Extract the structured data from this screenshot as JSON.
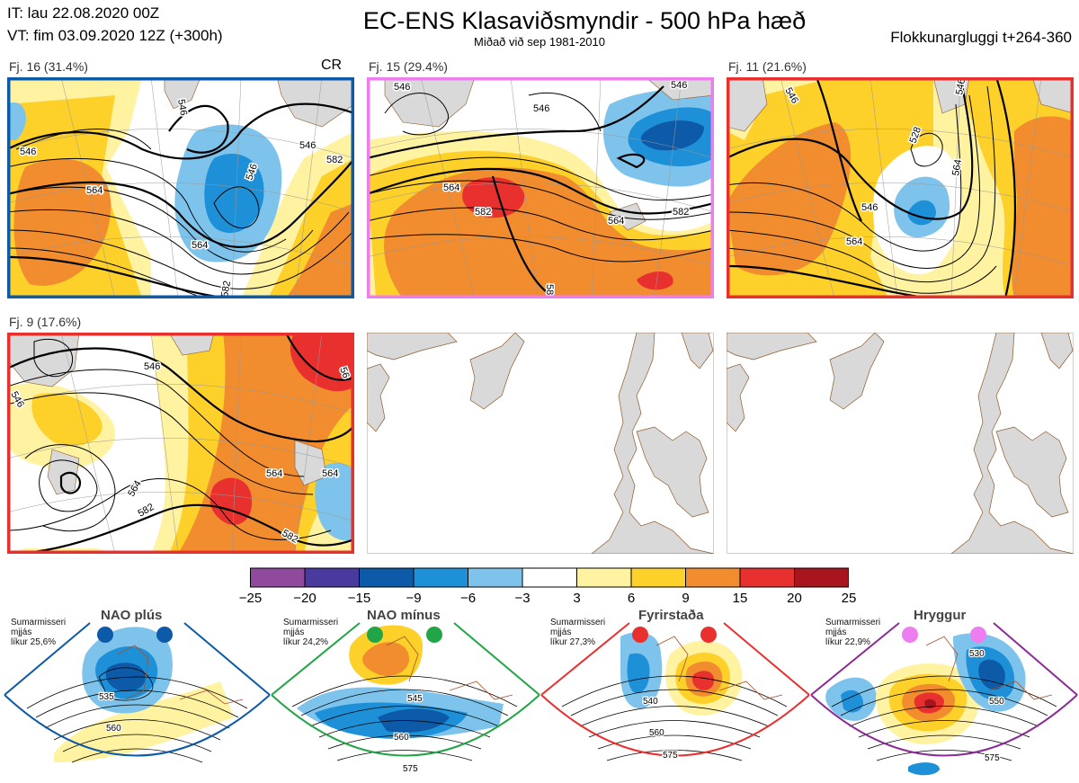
{
  "header": {
    "it_line": "IT: lau 22.08.2020 00Z",
    "vt_line": "VT: fim 03.09.2020 12Z  (+300h)",
    "title": "EC-ENS Klasaviðsmyndir - 500 hPa hæð",
    "subtitle": "Miðað við sep 1981-2010",
    "window": "Flokkunargluggi t+264-360"
  },
  "panels": [
    {
      "label": "Fj. 16 (31.4%)",
      "border": "#0d5aa8",
      "tag": "CR",
      "contours": [
        "546",
        "546",
        "564",
        "582",
        "564",
        "546",
        "546",
        "564",
        "582",
        "582"
      ]
    },
    {
      "label": "Fj. 15 (29.4%)",
      "border": "#ee7ef0",
      "contours": [
        "546",
        "546",
        "564",
        "582",
        "564",
        "582",
        "546",
        "546",
        "58"
      ]
    },
    {
      "label": "Fj. 11 (21.6%)",
      "border": "#e8312f",
      "contours": [
        "546",
        "528",
        "546",
        "564",
        "564",
        "582",
        "546"
      ]
    },
    {
      "label": "Fj. 9 (17.6%)",
      "border": "#e8312f",
      "contours": [
        "546",
        "546",
        "564",
        "582",
        "564",
        "582",
        "564",
        "546",
        "56"
      ]
    }
  ],
  "colorbar": {
    "ticks": [
      "−25",
      "−20",
      "−15",
      "−9",
      "−6",
      "−3",
      "3",
      "6",
      "9",
      "15",
      "20",
      "25"
    ],
    "colors": [
      "#8f4a9e",
      "#4a3a9e",
      "#0d5aa8",
      "#1e90d8",
      "#7ec3ec",
      "#ffffff",
      "#fff2a0",
      "#fdd02a",
      "#f18c2f",
      "#e8312f",
      "#a8151c"
    ]
  },
  "regimes": [
    {
      "name": "NAO plús",
      "season": "Sumarmisseri",
      "variant": "mjjás",
      "prob": "líkur 25,6%",
      "color": "#0d5aa8",
      "contours": [
        "535",
        "560"
      ]
    },
    {
      "name": "NAO mínus",
      "season": "Sumarmisseri",
      "variant": "mjjás",
      "prob": "líkur 24,2%",
      "color": "#22a546",
      "contours": [
        "545",
        "560",
        "575"
      ]
    },
    {
      "name": "Fyrirstaða",
      "season": "Sumarmisseri",
      "variant": "mjjás",
      "prob": "líkur 27,3%",
      "color": "#e8312f",
      "contours": [
        "540",
        "560",
        "575"
      ]
    },
    {
      "name": "Hryggur",
      "season": "Sumarmisseri",
      "variant": "mjjás",
      "prob": "líkur 22,9%",
      "color": "#8b2c95",
      "contours": [
        "530",
        "550",
        "575"
      ]
    }
  ]
}
